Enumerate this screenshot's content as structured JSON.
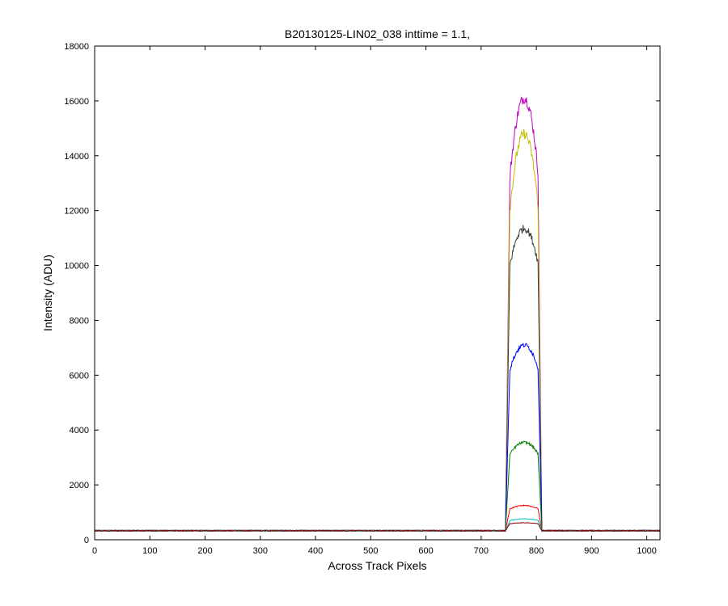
{
  "chart_data": {
    "type": "line",
    "title": "B20130125-LIN02_038 inttime = 1.1,",
    "xlabel": "Across Track Pixels",
    "ylabel": "Intensity (ADU)",
    "xlim": [
      0,
      1024
    ],
    "ylim": [
      0,
      18000
    ],
    "xticks": [
      "0",
      "100",
      "200",
      "300",
      "400",
      "500",
      "600",
      "700",
      "800",
      "900",
      "1000"
    ],
    "yticks": [
      "0",
      "2000",
      "4000",
      "6000",
      "8000",
      "10000",
      "12000",
      "14000",
      "16000",
      "18000"
    ],
    "grid": false,
    "legend": "none",
    "profile": {
      "baseline": 330,
      "rise_start": 744,
      "plateau_start": 752,
      "plateau_end": 803,
      "fall_end": 810,
      "peak_x": 778
    },
    "series": [
      {
        "color": "#bf00bf",
        "peak": 16100,
        "edge": 13200
      },
      {
        "color": "#bfbf00",
        "peak": 14800,
        "edge": 12000
      },
      {
        "color": "#404040",
        "peak": 11350,
        "edge": 10000
      },
      {
        "color": "#0000ff",
        "peak": 7100,
        "edge": 6200
      },
      {
        "color": "#008000",
        "peak": 3550,
        "edge": 3100
      },
      {
        "color": "#ff0000",
        "peak": 1250,
        "edge": 1120
      },
      {
        "color": "#00bfbf",
        "peak": 760,
        "edge": 700
      },
      {
        "color": "#800000",
        "peak": 620,
        "edge": 580
      }
    ]
  }
}
